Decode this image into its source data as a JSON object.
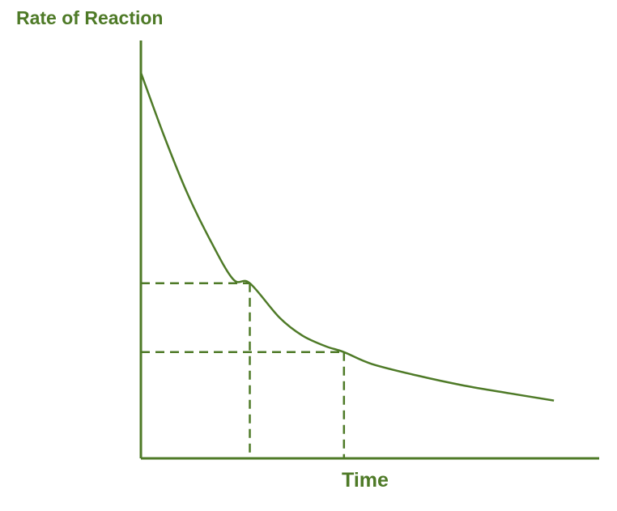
{
  "colors": {
    "accent": "#4e7a27",
    "background": "#ffffff"
  },
  "chart_data": {
    "type": "line",
    "title": "",
    "xlabel": "Time",
    "ylabel": "Rate of Reaction",
    "xticks": [],
    "yticks": [],
    "grid": false,
    "legend": "none",
    "xlim": [
      0,
      10
    ],
    "ylim": [
      0,
      10
    ],
    "series": [
      {
        "style": "solid",
        "points": [
          [
            0.0,
            9.8
          ],
          [
            0.5,
            8.2
          ],
          [
            1.0,
            6.75
          ],
          [
            1.5,
            5.55
          ],
          [
            2.0,
            4.55
          ],
          [
            2.36,
            4.45
          ],
          [
            3.0,
            3.58
          ],
          [
            3.5,
            3.12
          ],
          [
            4.0,
            2.85
          ],
          [
            4.4,
            2.7
          ],
          [
            5.0,
            2.4
          ],
          [
            6.0,
            2.1
          ],
          [
            7.0,
            1.85
          ],
          [
            8.0,
            1.65
          ],
          [
            8.95,
            1.47
          ]
        ]
      }
    ],
    "reference_lines": [
      {
        "style": "dashed",
        "x": 2.36,
        "y": 4.45
      },
      {
        "style": "dashed",
        "x": 4.4,
        "y": 2.7
      }
    ]
  }
}
